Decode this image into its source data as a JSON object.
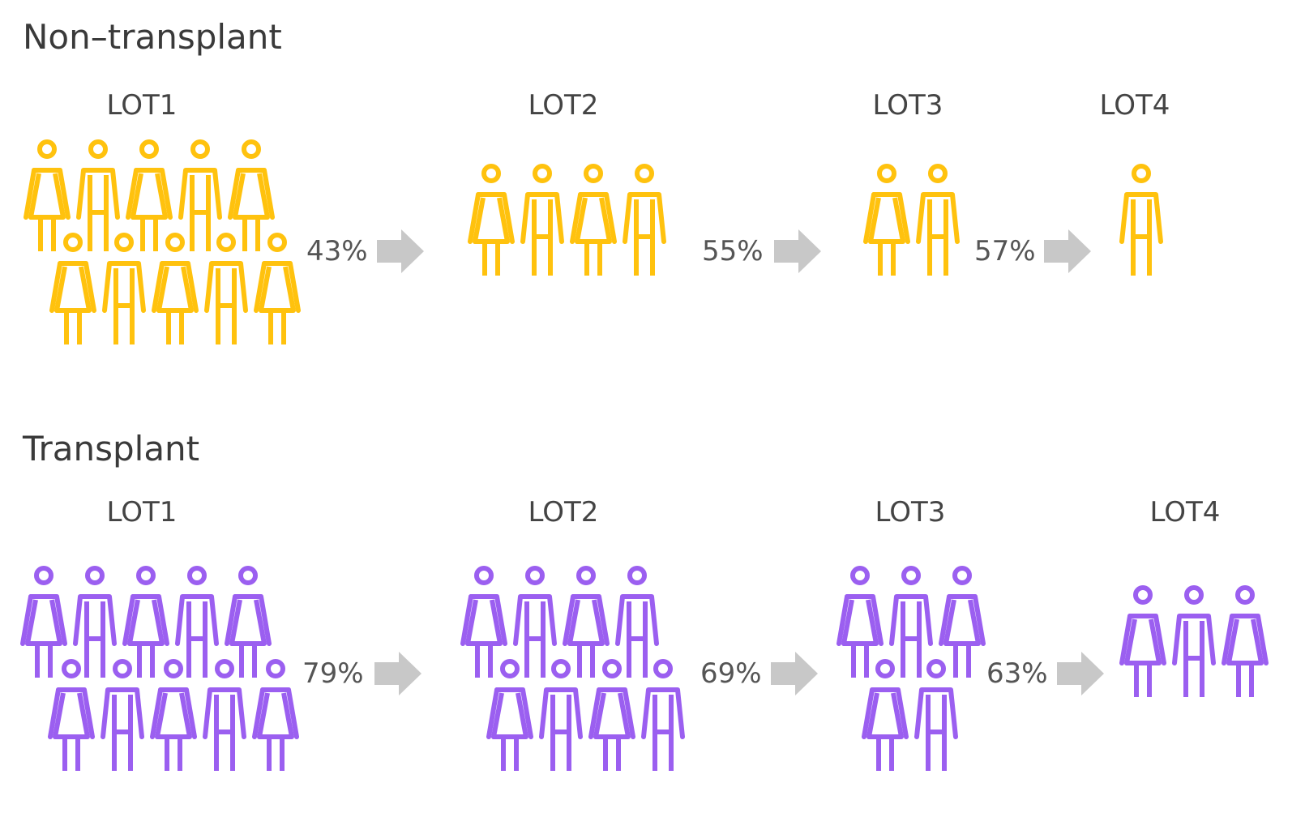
{
  "colors": {
    "non_transplant": "#FFC20E",
    "transplant": "#9B5FF0",
    "arrow": "#C8C8C8",
    "text": "#444444"
  },
  "icons": {
    "woman": "woman-icon",
    "man": "man-icon",
    "arrow": "arrow-right-icon"
  },
  "sections": [
    {
      "title": "Non–transplant",
      "stages": [
        {
          "label": "LOT1",
          "top_row": [
            "woman",
            "man",
            "woman",
            "man",
            "woman"
          ],
          "bottom_row": [
            "woman",
            "man",
            "woman",
            "man",
            "woman"
          ]
        },
        {
          "label": "LOT2",
          "top_row": [
            "woman",
            "man",
            "woman",
            "man"
          ],
          "bottom_row": []
        },
        {
          "label": "LOT3",
          "top_row": [
            "woman",
            "man"
          ],
          "bottom_row": []
        },
        {
          "label": "LOT4",
          "top_row": [
            "man"
          ],
          "bottom_row": []
        }
      ],
      "transitions": [
        "43%",
        "55%",
        "57%"
      ]
    },
    {
      "title": "Transplant",
      "stages": [
        {
          "label": "LOT1",
          "top_row": [
            "woman",
            "man",
            "woman",
            "man",
            "woman"
          ],
          "bottom_row": [
            "woman",
            "man",
            "woman",
            "man",
            "woman"
          ]
        },
        {
          "label": "LOT2",
          "top_row": [
            "woman",
            "man",
            "woman",
            "man"
          ],
          "bottom_row": [
            "woman",
            "man",
            "woman",
            "man"
          ]
        },
        {
          "label": "LOT3",
          "top_row": [
            "woman",
            "man",
            "woman"
          ],
          "bottom_row": [
            "woman",
            "man"
          ]
        },
        {
          "label": "LOT4",
          "top_row": [
            "woman",
            "man",
            "woman"
          ],
          "bottom_row": []
        }
      ],
      "transitions": [
        "79%",
        "69%",
        "63%"
      ]
    }
  ]
}
